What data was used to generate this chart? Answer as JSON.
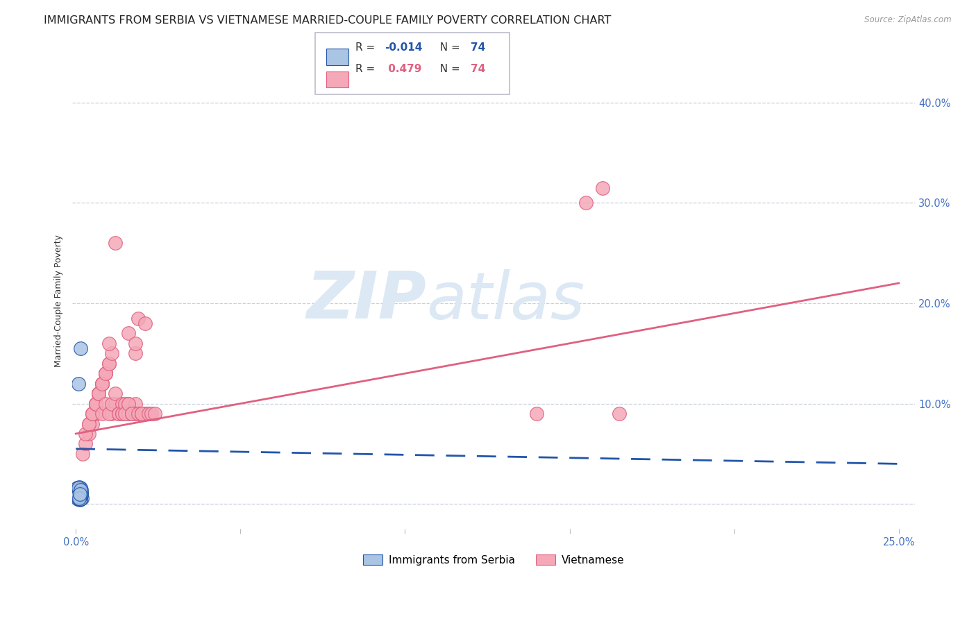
{
  "title": "IMMIGRANTS FROM SERBIA VS VIETNAMESE MARRIED-COUPLE FAMILY POVERTY CORRELATION CHART",
  "source": "Source: ZipAtlas.com",
  "ylabel": "Married-Couple Family Poverty",
  "yticks": [
    0.0,
    0.1,
    0.2,
    0.3,
    0.4
  ],
  "ytick_labels": [
    "",
    "10.0%",
    "20.0%",
    "30.0%",
    "40.0%"
  ],
  "xticks": [
    0.0,
    0.05,
    0.1,
    0.15,
    0.2,
    0.25
  ],
  "xlim": [
    -0.001,
    0.255
  ],
  "ylim": [
    -0.025,
    0.43
  ],
  "R_serbia": -0.014,
  "N_serbia": 74,
  "R_vietnamese": 0.479,
  "N_vietnamese": 74,
  "serbia_color": "#aac4e4",
  "vietnamese_color": "#f4a8b8",
  "serbia_line_color": "#2255aa",
  "vietnamese_line_color": "#e06080",
  "serbia_scatter_x": [
    0.0005,
    0.001,
    0.0008,
    0.0012,
    0.0015,
    0.0006,
    0.0009,
    0.0011,
    0.0007,
    0.0013,
    0.0016,
    0.0004,
    0.001,
    0.0014,
    0.0018,
    0.0008,
    0.0006,
    0.0012,
    0.0009,
    0.0011,
    0.0015,
    0.0007,
    0.0013,
    0.001,
    0.0014,
    0.0016,
    0.0005,
    0.0008,
    0.0011,
    0.0009,
    0.0013,
    0.0007,
    0.0012,
    0.0015,
    0.001,
    0.0006,
    0.0014,
    0.0008,
    0.0011,
    0.0009,
    0.0013,
    0.0016,
    0.0007,
    0.001,
    0.0012,
    0.0015,
    0.0008,
    0.0011,
    0.0009,
    0.0013,
    0.0006,
    0.0014,
    0.001,
    0.0012,
    0.0008,
    0.0015,
    0.0009,
    0.0011,
    0.0013,
    0.0007,
    0.0016,
    0.001,
    0.0012,
    0.0009,
    0.0014,
    0.0011,
    0.0008,
    0.0013,
    0.0006,
    0.0015,
    0.001,
    0.0012,
    0.0009,
    0.0014
  ],
  "serbia_scatter_y": [
    0.005,
    0.008,
    0.012,
    0.006,
    0.01,
    0.015,
    0.009,
    0.007,
    0.013,
    0.004,
    0.011,
    0.016,
    0.008,
    0.014,
    0.006,
    0.01,
    0.012,
    0.007,
    0.015,
    0.009,
    0.005,
    0.013,
    0.008,
    0.011,
    0.006,
    0.014,
    0.01,
    0.012,
    0.007,
    0.015,
    0.009,
    0.013,
    0.005,
    0.011,
    0.008,
    0.014,
    0.006,
    0.01,
    0.012,
    0.007,
    0.015,
    0.009,
    0.013,
    0.005,
    0.011,
    0.016,
    0.008,
    0.014,
    0.006,
    0.01,
    0.012,
    0.007,
    0.015,
    0.009,
    0.013,
    0.005,
    0.011,
    0.008,
    0.014,
    0.006,
    0.01,
    0.017,
    0.007,
    0.015,
    0.009,
    0.013,
    0.016,
    0.011,
    0.008,
    0.014,
    0.006,
    0.01,
    0.12,
    0.155
  ],
  "vietnamese_scatter_x": [
    0.002,
    0.003,
    0.004,
    0.005,
    0.006,
    0.003,
    0.004,
    0.005,
    0.006,
    0.007,
    0.004,
    0.005,
    0.006,
    0.007,
    0.008,
    0.005,
    0.006,
    0.007,
    0.008,
    0.009,
    0.006,
    0.007,
    0.008,
    0.009,
    0.01,
    0.007,
    0.008,
    0.009,
    0.01,
    0.011,
    0.008,
    0.009,
    0.01,
    0.011,
    0.012,
    0.01,
    0.011,
    0.012,
    0.013,
    0.014,
    0.012,
    0.013,
    0.014,
    0.015,
    0.016,
    0.014,
    0.015,
    0.016,
    0.017,
    0.018,
    0.015,
    0.016,
    0.017,
    0.018,
    0.019,
    0.016,
    0.017,
    0.018,
    0.019,
    0.02,
    0.018,
    0.019,
    0.02,
    0.021,
    0.022,
    0.02,
    0.021,
    0.022,
    0.023,
    0.024,
    0.155,
    0.16,
    0.165,
    0.14
  ],
  "vietnamese_scatter_y": [
    0.05,
    0.06,
    0.07,
    0.08,
    0.09,
    0.07,
    0.08,
    0.09,
    0.1,
    0.11,
    0.08,
    0.09,
    0.1,
    0.11,
    0.12,
    0.09,
    0.1,
    0.11,
    0.12,
    0.13,
    0.1,
    0.11,
    0.12,
    0.13,
    0.14,
    0.11,
    0.12,
    0.13,
    0.14,
    0.15,
    0.09,
    0.1,
    0.16,
    0.09,
    0.1,
    0.09,
    0.1,
    0.11,
    0.09,
    0.1,
    0.26,
    0.09,
    0.09,
    0.09,
    0.1,
    0.09,
    0.1,
    0.09,
    0.09,
    0.1,
    0.09,
    0.1,
    0.09,
    0.09,
    0.09,
    0.17,
    0.09,
    0.15,
    0.09,
    0.09,
    0.16,
    0.185,
    0.09,
    0.09,
    0.09,
    0.09,
    0.18,
    0.09,
    0.09,
    0.09,
    0.3,
    0.315,
    0.09,
    0.09
  ],
  "watermark_zip": "ZIP",
  "watermark_atlas": "atlas",
  "watermark_color": "#dce8f4",
  "background_color": "#ffffff",
  "grid_color": "#c8d0dc",
  "tick_color": "#4472c4",
  "title_color": "#222222",
  "title_fontsize": 11.5,
  "axis_label_fontsize": 9,
  "tick_fontsize": 10.5
}
